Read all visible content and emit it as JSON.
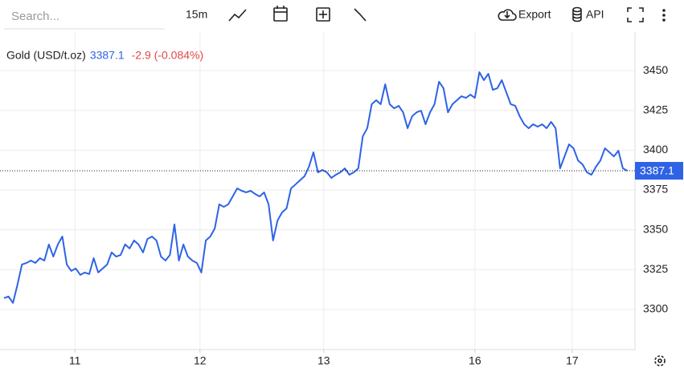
{
  "toolbar": {
    "search_placeholder": "Search...",
    "interval": "15m",
    "export": "Export",
    "api": "API"
  },
  "chart_data": {
    "type": "line",
    "series": [
      {
        "name": "Gold (USD/t.oz)",
        "color": "#2e63e6",
        "values": [
          3307.1,
          3308.1,
          3304.1,
          3315.6,
          3328.2,
          3329.2,
          3330.7,
          3329.2,
          3332.2,
          3330.7,
          3340.8,
          3333.2,
          3340.8,
          3345.8,
          3328.2,
          3324.2,
          3325.7,
          3321.7,
          3323.2,
          3322.2,
          3332.2,
          3323.2,
          3325.7,
          3328.2,
          3335.8,
          3333.2,
          3334.2,
          3340.8,
          3338.3,
          3343.3,
          3340.8,
          3335.8,
          3344.3,
          3345.8,
          3343.3,
          3333.2,
          3330.7,
          3334.2,
          3353.4,
          3330.7,
          3340.8,
          3333.2,
          3330.7,
          3329.2,
          3323.2,
          3343.3,
          3345.8,
          3350.9,
          3366.0,
          3364.4,
          3366.0,
          3371.0,
          3376.0,
          3374.5,
          3373.5,
          3374.5,
          3372.5,
          3371.0,
          3373.5,
          3366.0,
          3343.3,
          3355.9,
          3360.9,
          3363.4,
          3376.0,
          3378.5,
          3381.1,
          3383.6,
          3389.6,
          3398.7,
          3386.1,
          3387.6,
          3386.1,
          3382.6,
          3384.6,
          3386.1,
          3388.6,
          3384.6,
          3386.1,
          3388.6,
          3408.7,
          3413.8,
          3428.9,
          3431.4,
          3428.9,
          3441.4,
          3428.9,
          3426.3,
          3427.9,
          3423.8,
          3413.8,
          3421.3,
          3423.8,
          3424.8,
          3416.3,
          3423.8,
          3428.9,
          3443.0,
          3438.9,
          3423.8,
          3428.9,
          3431.4,
          3433.9,
          3432.9,
          3434.9,
          3432.9,
          3449.0,
          3444.0,
          3448.0,
          3437.9,
          3438.9,
          3444.0,
          3436.4,
          3428.9,
          3427.9,
          3421.3,
          3416.3,
          3413.8,
          3416.3,
          3414.8,
          3416.3,
          3413.8,
          3417.8,
          3413.8,
          3388.6,
          3396.1,
          3403.7,
          3401.2,
          3393.6,
          3391.1,
          3386.1,
          3384.6,
          3389.6,
          3393.6,
          3401.2,
          3398.7,
          3396.1,
          3399.7,
          3388.6,
          3387.1
        ]
      }
    ],
    "x": [
      0,
      1,
      2,
      3,
      4,
      5,
      6,
      7,
      8,
      9,
      10,
      11,
      12,
      13,
      14,
      15,
      16,
      17,
      18,
      19,
      20,
      21,
      22,
      23,
      24,
      25,
      26,
      27,
      28,
      29,
      30,
      31,
      32,
      33,
      34,
      35,
      36,
      37,
      38,
      39,
      40,
      41,
      42,
      43,
      44,
      45,
      46,
      47,
      48,
      49,
      50,
      51,
      52,
      53,
      54,
      55,
      56,
      57,
      58,
      59,
      60,
      61,
      62,
      63,
      64,
      65,
      66,
      67,
      68,
      69,
      70,
      71,
      72,
      73,
      74,
      75,
      76,
      77,
      78,
      79,
      80,
      81,
      82,
      83,
      84,
      85,
      86,
      87,
      88,
      89,
      90,
      91,
      92,
      93,
      94,
      95,
      96,
      97,
      98,
      99,
      100,
      101,
      102,
      103,
      104,
      105,
      106,
      107,
      108,
      109,
      110,
      111,
      112,
      113,
      114,
      115,
      116,
      117,
      118,
      119,
      120,
      121,
      122,
      123,
      124,
      125,
      126,
      127,
      128,
      129,
      130,
      131,
      132,
      133,
      134,
      135,
      136,
      137,
      138,
      139
    ],
    "xlim": [
      0,
      140.7
    ],
    "xticks": [
      {
        "value": 15.8,
        "label": "11"
      },
      {
        "value": 43.7,
        "label": "12"
      },
      {
        "value": 71.3,
        "label": "13"
      },
      {
        "value": 105,
        "label": "16"
      },
      {
        "value": 126.7,
        "label": "17"
      }
    ],
    "ylim": [
      3274.8,
      3474.2
    ],
    "yticks": [
      3300,
      3325,
      3350,
      3375,
      3400,
      3425,
      3450
    ],
    "grid": true,
    "last_value": 3387.1,
    "change": "-2.9 (-0.084%)",
    "change_color": "#e04848"
  }
}
